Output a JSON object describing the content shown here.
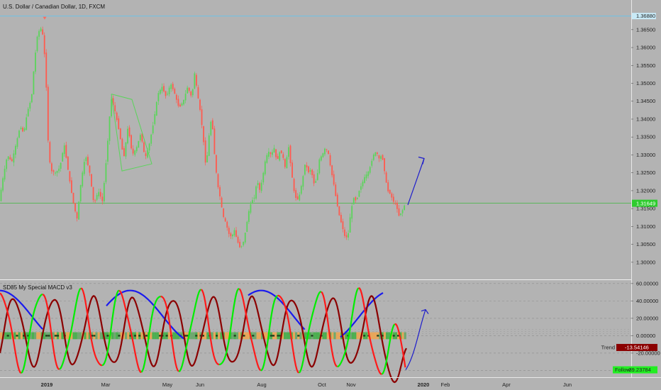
{
  "chart_data": [
    {
      "type": "candlestick",
      "title": "U.S. Dollar / Canadian Dollar, 1D, FXCM",
      "x_labels": [
        "2019",
        "Mar",
        "May",
        "Jun",
        "Aug",
        "Oct",
        "Nov",
        "2020",
        "Feb",
        "Apr",
        "Jun"
      ],
      "y_ticks": [
        "1.36500",
        "1.36000",
        "1.35500",
        "1.35000",
        "1.34500",
        "1.34000",
        "1.33500",
        "1.33000",
        "1.32500",
        "1.32000",
        "1.31500",
        "1.31000",
        "1.30500",
        "1.30000"
      ],
      "ylim": [
        1.2968,
        1.3717
      ],
      "price_path": [
        [
          0,
          1.3165
        ],
        [
          6,
          1.324
        ],
        [
          12,
          1.33
        ],
        [
          18,
          1.328
        ],
        [
          24,
          1.333
        ],
        [
          30,
          1.338
        ],
        [
          35,
          1.336
        ],
        [
          40,
          1.342
        ],
        [
          46,
          1.346
        ],
        [
          50,
          1.356
        ],
        [
          54,
          1.363
        ],
        [
          58,
          1.3655
        ],
        [
          61,
          1.365
        ],
        [
          64,
          1.359
        ],
        [
          67,
          1.348
        ],
        [
          70,
          1.33
        ],
        [
          74,
          1.3255
        ],
        [
          80,
          1.325
        ],
        [
          86,
          1.3265
        ],
        [
          92,
          1.333
        ],
        [
          98,
          1.325
        ],
        [
          104,
          1.3175
        ],
        [
          110,
          1.312
        ],
        [
          116,
          1.323
        ],
        [
          122,
          1.33
        ],
        [
          128,
          1.325
        ],
        [
          134,
          1.316
        ],
        [
          140,
          1.32
        ],
        [
          146,
          1.317
        ],
        [
          152,
          1.33
        ],
        [
          158,
          1.346
        ],
        [
          164,
          1.342
        ],
        [
          170,
          1.336
        ],
        [
          176,
          1.329
        ],
        [
          182,
          1.338
        ],
        [
          188,
          1.33
        ],
        [
          194,
          1.332
        ],
        [
          200,
          1.336
        ],
        [
          206,
          1.329
        ],
        [
          212,
          1.333
        ],
        [
          218,
          1.339
        ],
        [
          224,
          1.347
        ],
        [
          230,
          1.349
        ],
        [
          236,
          1.346
        ],
        [
          242,
          1.35
        ],
        [
          248,
          1.347
        ],
        [
          254,
          1.343
        ],
        [
          260,
          1.345
        ],
        [
          266,
          1.349
        ],
        [
          272,
          1.346
        ],
        [
          276,
          1.353
        ],
        [
          280,
          1.347
        ],
        [
          284,
          1.342
        ],
        [
          288,
          1.335
        ],
        [
          292,
          1.326
        ],
        [
          296,
          1.335
        ],
        [
          300,
          1.341
        ],
        [
          304,
          1.33
        ],
        [
          308,
          1.322
        ],
        [
          312,
          1.318
        ],
        [
          316,
          1.313
        ],
        [
          320,
          1.311
        ],
        [
          324,
          1.308
        ],
        [
          328,
          1.307
        ],
        [
          332,
          1.309
        ],
        [
          336,
          1.306
        ],
        [
          340,
          1.304
        ],
        [
          344,
          1.305
        ],
        [
          348,
          1.309
        ],
        [
          352,
          1.314
        ],
        [
          356,
          1.317
        ],
        [
          360,
          1.318
        ],
        [
          364,
          1.323
        ],
        [
          368,
          1.32
        ],
        [
          372,
          1.324
        ],
        [
          376,
          1.329
        ],
        [
          380,
          1.331
        ],
        [
          384,
          1.33
        ],
        [
          388,
          1.332
        ],
        [
          392,
          1.328
        ],
        [
          396,
          1.331
        ],
        [
          400,
          1.33
        ],
        [
          404,
          1.326
        ],
        [
          408,
          1.333
        ],
        [
          412,
          1.326
        ],
        [
          416,
          1.32
        ],
        [
          420,
          1.317
        ],
        [
          424,
          1.319
        ],
        [
          428,
          1.323
        ],
        [
          432,
          1.328
        ],
        [
          436,
          1.325
        ],
        [
          440,
          1.326
        ],
        [
          444,
          1.322
        ],
        [
          448,
          1.323
        ],
        [
          452,
          1.329
        ],
        [
          456,
          1.33
        ],
        [
          460,
          1.332
        ],
        [
          464,
          1.331
        ],
        [
          468,
          1.326
        ],
        [
          472,
          1.322
        ],
        [
          476,
          1.317
        ],
        [
          480,
          1.313
        ],
        [
          484,
          1.31
        ],
        [
          488,
          1.307
        ],
        [
          492,
          1.307
        ],
        [
          496,
          1.314
        ],
        [
          500,
          1.318
        ],
        [
          504,
          1.317
        ],
        [
          508,
          1.32
        ],
        [
          512,
          1.322
        ],
        [
          516,
          1.324
        ],
        [
          520,
          1.325
        ],
        [
          524,
          1.327
        ],
        [
          528,
          1.33
        ],
        [
          532,
          1.331
        ],
        [
          536,
          1.329
        ],
        [
          540,
          1.33
        ],
        [
          544,
          1.325
        ],
        [
          548,
          1.32
        ],
        [
          552,
          1.319
        ],
        [
          556,
          1.317
        ],
        [
          560,
          1.316
        ],
        [
          564,
          1.313
        ],
        [
          568,
          1.314
        ],
        [
          572,
          1.316
        ]
      ],
      "projection_path": [
        [
          575,
          1.316
        ],
        [
          598,
          1.329
        ]
      ],
      "last_price": "1.31649",
      "last_price_value": 1.31649,
      "high_line_label": "1.36880",
      "high_line_value": 1.3688,
      "colors": {
        "up": "#5bd45b",
        "down": "#ff5a4e",
        "last_line": "#3db83d",
        "high_line": "#6ec3e6",
        "arrow": "#1e1ecc"
      }
    },
    {
      "type": "line",
      "title": "SD85 My Special MACD v3",
      "y_ticks": [
        "60.00000",
        "40.00000",
        "20.00000",
        "0.00000",
        "-20.00000"
      ],
      "ylim": [
        -44.5,
        61.5
      ],
      "trend_label": "Trend",
      "trend_value": "-13.54146",
      "trend_value_num": -13.54146,
      "follow_label": "Follow",
      "follow_value": "-39.23784",
      "follow_value_num": -39.23784,
      "colors": {
        "trend": "#8b0000",
        "follow_rise": "#00ee00",
        "follow_fall": "#ff1a1a",
        "blue": "#1a1aee",
        "band_green": "#4caf50",
        "band_orange": "#e8a65a",
        "band_dark": "#1f3f1f"
      }
    }
  ]
}
